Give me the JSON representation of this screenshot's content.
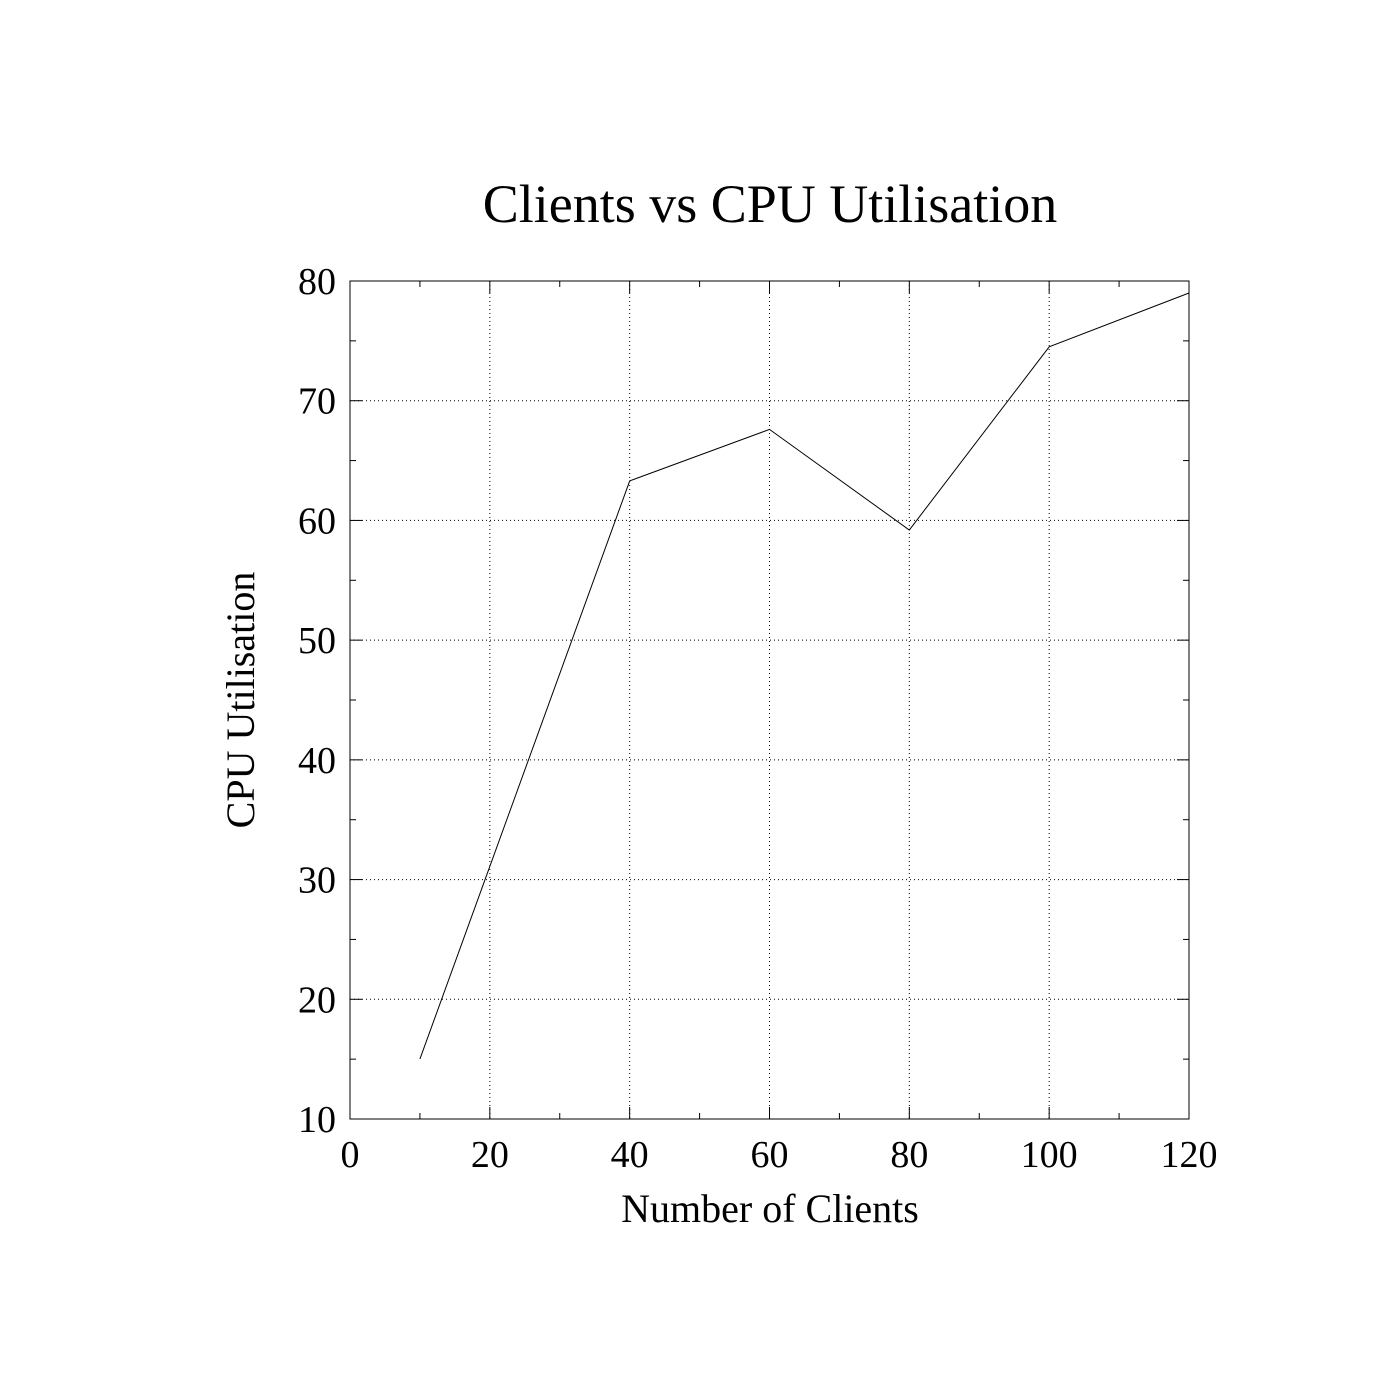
{
  "chart_data": {
    "type": "line",
    "title": "Clients vs CPU Utilisation",
    "xlabel": "Number of Clients",
    "ylabel": "CPU Utilisation",
    "xlim": [
      0,
      120
    ],
    "ylim": [
      10,
      80
    ],
    "xticks": [
      0,
      20,
      40,
      60,
      80,
      100,
      120
    ],
    "yticks": [
      10,
      20,
      30,
      40,
      50,
      60,
      70,
      80
    ],
    "x_minor_step": 10,
    "y_minor_step": 5,
    "grid": true,
    "legend": "none",
    "line_color": "#000000",
    "series": [
      {
        "x": [
          10,
          40,
          60,
          80,
          100,
          120
        ],
        "y": [
          15,
          63.3,
          67.6,
          59.2,
          74.5,
          79
        ]
      }
    ]
  }
}
